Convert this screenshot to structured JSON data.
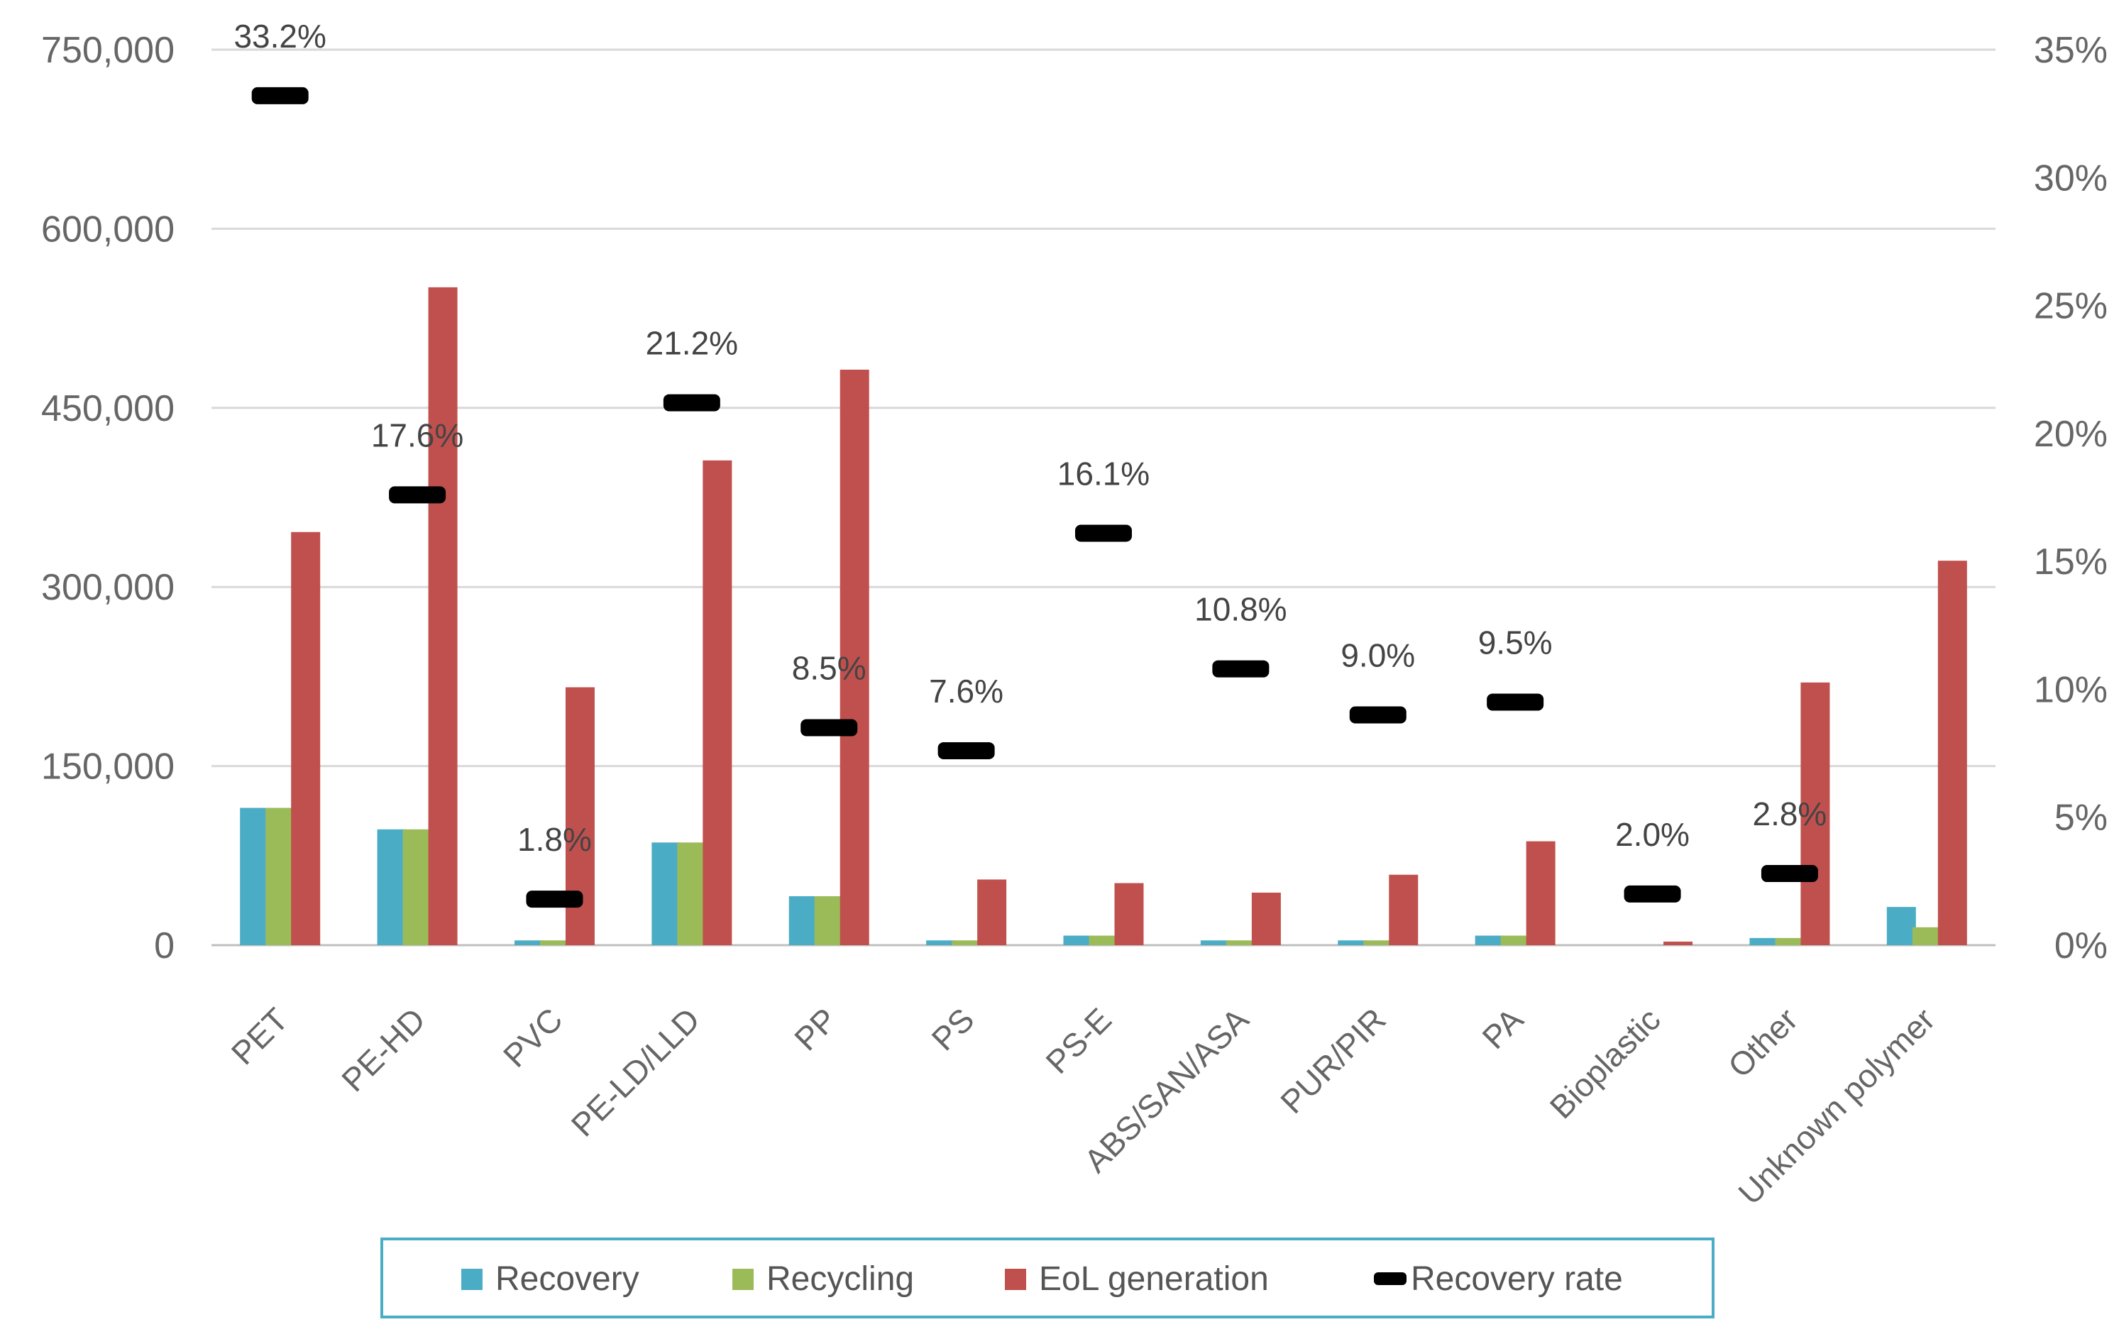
{
  "chart_data": {
    "type": "bar",
    "title": "",
    "categories": [
      "PET",
      "PE-HD",
      "PVC",
      "PE-LD/LLD",
      "PP",
      "PS",
      "PS-E",
      "ABS/SAN/ASA",
      "PUR/PIR",
      "PA",
      "Bioplastic",
      "Other",
      "Unknown polymer"
    ],
    "series": [
      {
        "name": "Recovery",
        "axis": "left",
        "color": "#4bacc6",
        "values": [
          115000,
          97000,
          4000,
          86000,
          41000,
          4000,
          8000,
          4000,
          4000,
          8000,
          0,
          6000,
          32000
        ]
      },
      {
        "name": "Recycling",
        "axis": "left",
        "color": "#9bbb59",
        "values": [
          115000,
          97000,
          4000,
          86000,
          41000,
          4000,
          8000,
          4000,
          4000,
          8000,
          0,
          6000,
          15000
        ]
      },
      {
        "name": "EoL generation",
        "axis": "left",
        "color": "#c0504d",
        "values": [
          346000,
          551000,
          216000,
          406000,
          482000,
          55000,
          52000,
          44000,
          59000,
          87000,
          3000,
          220000,
          322000
        ]
      },
      {
        "name": "Recovery rate",
        "axis": "right",
        "type": "marker",
        "color": "#000000",
        "values": [
          33.2,
          17.6,
          1.8,
          21.2,
          8.5,
          7.6,
          16.1,
          10.8,
          9.0,
          9.5,
          2.0,
          2.8,
          null
        ]
      }
    ],
    "rate_labels": [
      "33.2%",
      "17.6%",
      "1.8%",
      "21.2%",
      "8.5%",
      "7.6%",
      "16.1%",
      "10.8%",
      "9.0%",
      "9.5%",
      "2.0%",
      "2.8%",
      ""
    ],
    "y_left": {
      "ylim": [
        0,
        750000
      ],
      "ticks": [
        0,
        150000,
        300000,
        450000,
        600000,
        750000
      ],
      "tick_labels": [
        "0",
        "150,000",
        "300,000",
        "450,000",
        "600,000",
        "750,000"
      ]
    },
    "y_right": {
      "ylim": [
        0,
        35
      ],
      "ticks": [
        0,
        5,
        10,
        15,
        20,
        25,
        30,
        35
      ],
      "tick_labels": [
        "0%",
        "5%",
        "10%",
        "15%",
        "20%",
        "25%",
        "30%",
        "35%"
      ]
    },
    "grid": true,
    "legend_position": "bottom",
    "legend": [
      "Recovery",
      "Recycling",
      "EoL generation",
      "Recovery rate"
    ]
  }
}
